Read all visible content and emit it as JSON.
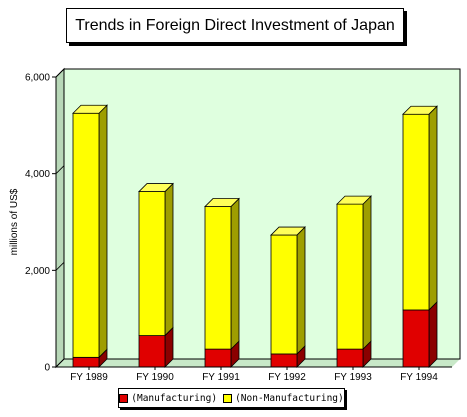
{
  "chart_data": {
    "type": "bar",
    "stacked": true,
    "three_d": true,
    "title": "Trends in Foreign Direct Investment of Japan",
    "ylabel": "millions of US$",
    "xlabel": "",
    "categories": [
      "FY 1989",
      "FY 1990",
      "FY 1991",
      "FY 1992",
      "FY 1993",
      "FY 1994"
    ],
    "series": [
      {
        "name": "(Manufacturing)",
        "color": "#e00000",
        "values": [
          200,
          650,
          370,
          270,
          370,
          1180
        ]
      },
      {
        "name": "(Non-Manufacturing)",
        "color": "#ffff00",
        "values": [
          5050,
          2980,
          2950,
          2460,
          3000,
          4050
        ]
      }
    ],
    "ylim": [
      0,
      6000
    ],
    "yticks": [
      0,
      2000,
      4000,
      6000
    ],
    "ytick_labels": [
      "0",
      "2,000",
      "4,000",
      "6,000"
    ],
    "grid": false,
    "plot_background": "#dfffdf",
    "legend_position": "bottom"
  }
}
